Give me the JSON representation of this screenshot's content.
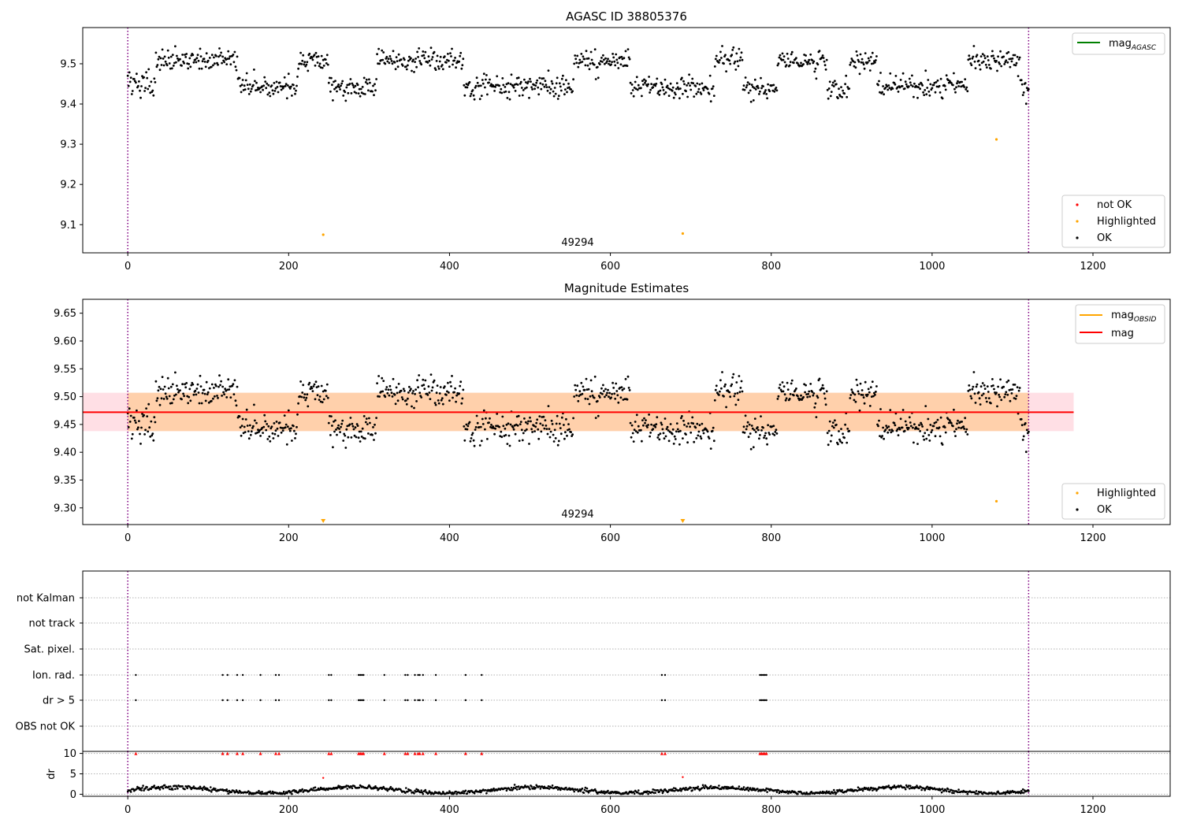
{
  "chart_data": [
    {
      "type": "scatter",
      "title": "AGASC ID 38805376",
      "xlabel": "",
      "ylabel": "",
      "xlim": [
        -56,
        1296
      ],
      "ylim": [
        9.03,
        9.59
      ],
      "xticks": [
        0,
        200,
        400,
        600,
        800,
        1000,
        1200
      ],
      "yticks": [
        9.1,
        9.2,
        9.3,
        9.4,
        9.5
      ],
      "ytick_labels": [
        "9.1",
        "9.2",
        "9.3",
        "9.4",
        "9.5"
      ],
      "vlines": [
        0,
        1120
      ],
      "annotation": {
        "text": "49294",
        "x": 560,
        "y": 9.045
      },
      "line_legend": {
        "base": "mag",
        "sub": "AGASC",
        "color": "#008000",
        "position": "upper right"
      },
      "point_legend": {
        "entries": [
          {
            "label": "not OK",
            "color": "#ff0000"
          },
          {
            "label": "Highlighted",
            "color": "#ffa500"
          },
          {
            "label": "OK",
            "color": "#000000"
          }
        ],
        "position": "lower right"
      },
      "segments": [
        {
          "x0": 0,
          "x1": 35,
          "y0": 9.45
        },
        {
          "x0": 35,
          "x1": 137,
          "y0": 9.51
        },
        {
          "x0": 137,
          "x1": 212,
          "y0": 9.445
        },
        {
          "x0": 212,
          "x1": 250,
          "y0": 9.505
        },
        {
          "x0": 250,
          "x1": 310,
          "y0": 9.44
        },
        {
          "x0": 310,
          "x1": 378,
          "y0": 9.51
        },
        {
          "x0": 378,
          "x1": 418,
          "y0": 9.505
        },
        {
          "x0": 418,
          "x1": 555,
          "y0": 9.445
        },
        {
          "x0": 555,
          "x1": 625,
          "y0": 9.505
        },
        {
          "x0": 625,
          "x1": 730,
          "y0": 9.44
        },
        {
          "x0": 730,
          "x1": 765,
          "y0": 9.51
        },
        {
          "x0": 765,
          "x1": 808,
          "y0": 9.44
        },
        {
          "x0": 808,
          "x1": 870,
          "y0": 9.505
        },
        {
          "x0": 870,
          "x1": 898,
          "y0": 9.435
        },
        {
          "x0": 898,
          "x1": 932,
          "y0": 9.505
        },
        {
          "x0": 932,
          "x1": 1045,
          "y0": 9.445
        },
        {
          "x0": 1045,
          "x1": 1110,
          "y0": 9.51
        },
        {
          "x0": 1110,
          "x1": 1120,
          "y0": 9.44
        }
      ],
      "noise": 0.014,
      "highlighted_points": [
        {
          "x": 243,
          "y": 9.075
        },
        {
          "x": 690,
          "y": 9.078
        },
        {
          "x": 1080,
          "y": 9.312
        }
      ]
    },
    {
      "type": "scatter",
      "title": "Magnitude Estimates",
      "xlabel": "",
      "ylabel": "",
      "xlim": [
        -56,
        1296
      ],
      "ylim": [
        9.27,
        9.675
      ],
      "xticks": [
        0,
        200,
        400,
        600,
        800,
        1000,
        1200
      ],
      "yticks": [
        9.3,
        9.35,
        9.4,
        9.45,
        9.5,
        9.55,
        9.6,
        9.65
      ],
      "ytick_labels": [
        "9.30",
        "9.35",
        "9.40",
        "9.45",
        "9.50",
        "9.55",
        "9.60",
        "9.65"
      ],
      "vlines": [
        0,
        1120
      ],
      "annotation": {
        "text": "49294",
        "x": 560,
        "y": 9.282
      },
      "mag_line": {
        "y": 9.472,
        "x0": -56,
        "x1": 1176,
        "color": "#ff0000"
      },
      "mag_band": {
        "y0": 9.438,
        "y1": 9.507,
        "color": "#ffc0cb"
      },
      "obsid_band": {
        "y0": 9.438,
        "y1": 9.507,
        "x0": 0,
        "x1": 1120,
        "color": "#ffa500"
      },
      "line_legend": {
        "entries": [
          {
            "base": "mag",
            "sub": "OBSID",
            "color": "#ffa500"
          },
          {
            "base": "mag",
            "sub": "",
            "color": "#ff0000"
          }
        ],
        "position": "upper right"
      },
      "point_legend": {
        "entries": [
          {
            "label": "Highlighted",
            "color": "#ffa500"
          },
          {
            "label": "OK",
            "color": "#000000"
          }
        ],
        "position": "lower right"
      },
      "highlighted_points": [
        {
          "x": 1080,
          "y": 9.312
        }
      ],
      "offscale_markers": [
        {
          "x": 243
        },
        {
          "x": 690
        }
      ]
    },
    {
      "type": "scatter",
      "title": "",
      "xlim": [
        -56,
        1296
      ],
      "xticks": [
        0,
        200,
        400,
        600,
        800,
        1000,
        1200
      ],
      "vlines": [
        0,
        1120
      ],
      "flag_rows": [
        "not Kalman",
        "not track",
        "Sat. pixel.",
        "Ion. rad.",
        "dr > 5",
        "OBS not OK"
      ],
      "flag_x": [
        10,
        118,
        124,
        136,
        143,
        165,
        184,
        188,
        250,
        253,
        287,
        289,
        291,
        293,
        319,
        345,
        348,
        357,
        361,
        363,
        367,
        383,
        420,
        440,
        664,
        668,
        786,
        788,
        790,
        792,
        794
      ],
      "flag_rows_with_points": [
        "Ion. rad.",
        "dr > 5"
      ]
    },
    {
      "type": "scatter",
      "title": "",
      "ylabel": "dr",
      "xlim": [
        -56,
        1296
      ],
      "ylim": [
        -0.5,
        10.5
      ],
      "xticks": [
        0,
        200,
        400,
        600,
        800,
        1000,
        1200
      ],
      "yticks": [
        0,
        5,
        10
      ],
      "ytick_labels": [
        "0",
        "5",
        "10"
      ],
      "vlines": [
        0,
        1120
      ],
      "clipped_value": 10,
      "outliers": [
        {
          "x": 243,
          "y": 4.0
        },
        {
          "x": 690,
          "y": 4.2
        }
      ]
    }
  ]
}
